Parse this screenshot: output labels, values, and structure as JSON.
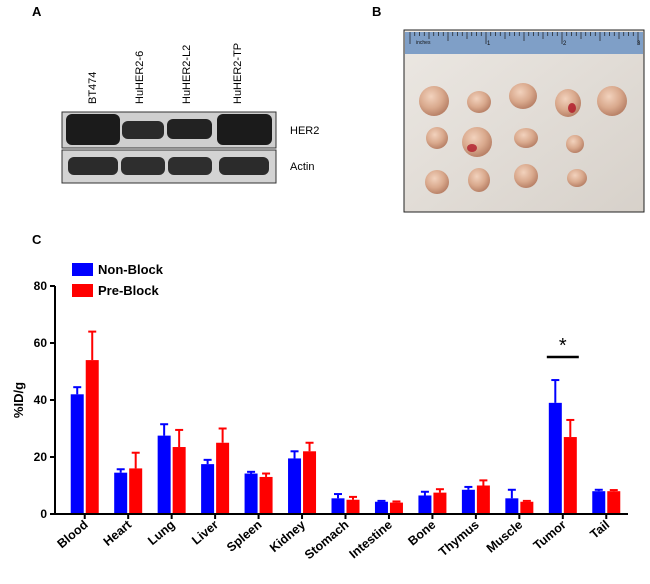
{
  "panels": {
    "a": "A",
    "b": "B",
    "c": "C"
  },
  "blot": {
    "lanes": [
      "BT474",
      "HuHER2-6",
      "HuHER2-L2",
      "HuHER2-TP"
    ],
    "rows": [
      "HER2",
      "Actin"
    ]
  },
  "photo": {
    "ruler_label": "inches",
    "ruler_marks": [
      "1",
      "2",
      "3"
    ]
  },
  "chart_data": {
    "type": "bar",
    "ylabel": "%ID/g",
    "xlabel": "",
    "ylim": [
      0,
      80
    ],
    "yticks": [
      "0",
      "20",
      "40",
      "60",
      "80"
    ],
    "categories": [
      "Blood",
      "Heart",
      "Lung",
      "Liver",
      "Spleen",
      "Kidney",
      "Stomach",
      "Intestine",
      "Bone",
      "Thymus",
      "Muscle",
      "Tumor",
      "Tail"
    ],
    "series": [
      {
        "name": "Non-Block",
        "color": "#0000ff",
        "values": [
          42,
          14.5,
          27.5,
          17.5,
          14.2,
          19.5,
          5.5,
          4.3,
          6.5,
          8.5,
          5.5,
          39,
          8
        ],
        "errors": [
          2.5,
          1.2,
          4,
          1.5,
          0.6,
          2.5,
          1.5,
          0.3,
          1.3,
          1,
          3,
          8,
          0.5
        ]
      },
      {
        "name": "Pre-Block",
        "color": "#ff0000",
        "values": [
          54,
          16,
          23.5,
          25,
          13,
          22,
          5,
          4,
          7.5,
          10,
          4.3,
          27,
          8
        ],
        "errors": [
          10,
          5.5,
          6,
          5,
          1.2,
          3,
          1,
          0.4,
          1.2,
          1.8,
          0.3,
          6,
          0.4
        ]
      }
    ],
    "legend_position": "top-left",
    "annotation": {
      "text": "*",
      "category": "Tumor"
    }
  }
}
